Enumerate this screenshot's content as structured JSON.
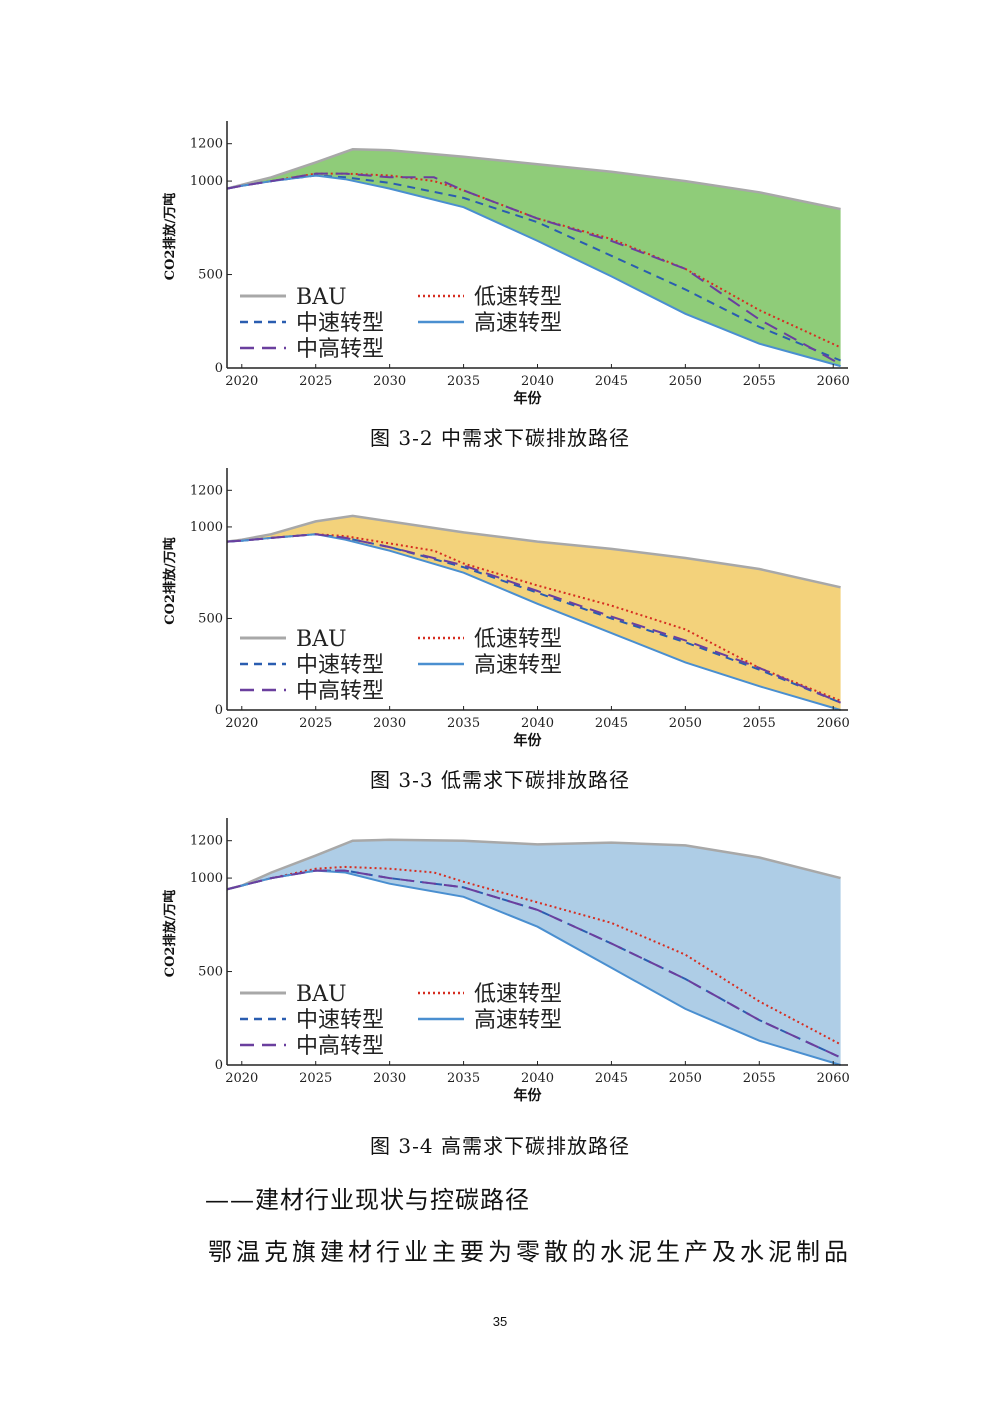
{
  "chart_data": [
    {
      "type": "area",
      "caption": "图 3-2 中需求下碳排放路径",
      "ylabel": "CO2排放/万吨",
      "xlabel": "年份",
      "yticks": [
        "0",
        "500",
        "1000",
        "1200"
      ],
      "xticks": [
        "2020",
        "2025",
        "2030",
        "2035",
        "2040",
        "2045",
        "2050",
        "2055",
        "2060"
      ],
      "xlim": [
        2019,
        2061
      ],
      "ylim": [
        0,
        1300
      ],
      "fill_color": "#8fcc79",
      "legend": [
        "BAU",
        "低速转型",
        "中速转型",
        "高速转型",
        "中高转型"
      ],
      "series": [
        {
          "name": "BAU",
          "x": [
            2019,
            2020,
            2022,
            2025,
            2027.5,
            2030,
            2035,
            2040,
            2045,
            2050,
            2055,
            2060.5
          ],
          "values": [
            960,
            980,
            1020,
            1100,
            1170,
            1165,
            1130,
            1090,
            1050,
            1000,
            940,
            850
          ]
        },
        {
          "name": "低速转型",
          "x": [
            2019,
            2020,
            2022,
            2025,
            2027,
            2030,
            2033,
            2035,
            2040,
            2045,
            2050,
            2055,
            2060.5
          ],
          "values": [
            960,
            975,
            1000,
            1040,
            1040,
            1030,
            1000,
            950,
            800,
            690,
            530,
            310,
            110
          ]
        },
        {
          "name": "中速转型",
          "x": [
            2019,
            2020,
            2022,
            2025,
            2027,
            2030,
            2035,
            2040,
            2045,
            2050,
            2055,
            2060.5
          ],
          "values": [
            960,
            975,
            1000,
            1030,
            1020,
            990,
            910,
            780,
            600,
            420,
            220,
            40
          ]
        },
        {
          "name": "高速转型",
          "x": [
            2019,
            2020,
            2022,
            2025,
            2027,
            2030,
            2035,
            2040,
            2045,
            2050,
            2055,
            2060.5
          ],
          "values": [
            960,
            975,
            1000,
            1030,
            1010,
            960,
            860,
            680,
            490,
            290,
            130,
            10
          ]
        },
        {
          "name": "中高转型",
          "x": [
            2019,
            2020,
            2022,
            2025,
            2027,
            2030,
            2033,
            2035,
            2040,
            2045,
            2050,
            2055,
            2060.5
          ],
          "values": [
            960,
            975,
            1000,
            1040,
            1040,
            1020,
            1020,
            950,
            800,
            680,
            530,
            260,
            20
          ]
        }
      ]
    },
    {
      "type": "area",
      "caption": "图 3-3 低需求下碳排放路径",
      "ylabel": "CO2排放/万吨",
      "xlabel": "年份",
      "yticks": [
        "0",
        "500",
        "1000",
        "1200"
      ],
      "xticks": [
        "2020",
        "2025",
        "2030",
        "2035",
        "2040",
        "2045",
        "2050",
        "2055",
        "2060"
      ],
      "xlim": [
        2019,
        2061
      ],
      "ylim": [
        0,
        1300
      ],
      "fill_color": "#f3d27b",
      "legend": [
        "BAU",
        "低速转型",
        "中速转型",
        "高速转型",
        "中高转型"
      ],
      "series": [
        {
          "name": "BAU",
          "x": [
            2019,
            2020,
            2022,
            2025,
            2027.5,
            2030,
            2035,
            2040,
            2045,
            2050,
            2055,
            2060.5
          ],
          "values": [
            920,
            930,
            960,
            1030,
            1060,
            1030,
            970,
            920,
            880,
            830,
            770,
            670
          ]
        },
        {
          "name": "低速转型",
          "x": [
            2019,
            2020,
            2022,
            2025,
            2027,
            2030,
            2033,
            2035,
            2040,
            2045,
            2050,
            2055,
            2060.5
          ],
          "values": [
            920,
            925,
            940,
            960,
            950,
            910,
            870,
            800,
            680,
            570,
            440,
            230,
            50
          ]
        },
        {
          "name": "中速转型",
          "x": [
            2019,
            2020,
            2022,
            2025,
            2027,
            2030,
            2035,
            2040,
            2045,
            2050,
            2055,
            2060.5
          ],
          "values": [
            920,
            925,
            940,
            960,
            940,
            890,
            780,
            640,
            500,
            370,
            220,
            40
          ]
        },
        {
          "name": "高速转型",
          "x": [
            2019,
            2020,
            2022,
            2025,
            2027,
            2030,
            2035,
            2040,
            2045,
            2050,
            2055,
            2060.5
          ],
          "values": [
            920,
            925,
            940,
            960,
            930,
            870,
            750,
            580,
            420,
            260,
            130,
            0
          ]
        },
        {
          "name": "中高转型",
          "x": [
            2019,
            2020,
            2022,
            2025,
            2027,
            2030,
            2035,
            2040,
            2045,
            2050,
            2055,
            2060.5
          ],
          "values": [
            920,
            925,
            940,
            960,
            940,
            890,
            790,
            650,
            510,
            380,
            230,
            40
          ]
        }
      ]
    },
    {
      "type": "area",
      "caption": "图 3-4 高需求下碳排放路径",
      "ylabel": "CO2排放/万吨",
      "xlabel": "年份",
      "yticks": [
        "0",
        "500",
        "1000",
        "1200"
      ],
      "xticks": [
        "2020",
        "2025",
        "2030",
        "2035",
        "2040",
        "2045",
        "2050",
        "2055",
        "2060"
      ],
      "xlim": [
        2019,
        2061
      ],
      "ylim": [
        0,
        1300
      ],
      "fill_color": "#aecde6",
      "legend": [
        "BAU",
        "低速转型",
        "中速转型",
        "高速转型",
        "中高转型"
      ],
      "series": [
        {
          "name": "BAU",
          "x": [
            2019,
            2020,
            2022,
            2025,
            2027.5,
            2030,
            2035,
            2040,
            2045,
            2050,
            2055,
            2060.5
          ],
          "values": [
            940,
            960,
            1030,
            1120,
            1200,
            1205,
            1200,
            1180,
            1190,
            1175,
            1110,
            1000
          ]
        },
        {
          "name": "低速转型",
          "x": [
            2019,
            2020,
            2022,
            2025,
            2027,
            2030,
            2033,
            2035,
            2040,
            2045,
            2050,
            2055,
            2060.5
          ],
          "values": [
            940,
            960,
            1000,
            1050,
            1060,
            1050,
            1030,
            980,
            870,
            760,
            590,
            340,
            110
          ]
        },
        {
          "name": "中速转型",
          "x": [
            2019,
            2020,
            2022,
            2025,
            2027,
            2030,
            2035,
            2040,
            2045,
            2050,
            2055,
            2060.5
          ],
          "values": [
            940,
            960,
            1000,
            1040,
            1040,
            1000,
            950,
            830,
            650,
            460,
            240,
            40
          ]
        },
        {
          "name": "高速转型",
          "x": [
            2019,
            2020,
            2022,
            2025,
            2027,
            2030,
            2035,
            2040,
            2045,
            2050,
            2055,
            2060.5
          ],
          "values": [
            940,
            960,
            1000,
            1040,
            1030,
            970,
            900,
            740,
            520,
            300,
            130,
            0
          ]
        },
        {
          "name": "中高转型",
          "x": [
            2019,
            2020,
            2022,
            2025,
            2027,
            2030,
            2035,
            2040,
            2045,
            2050,
            2055,
            2060.5
          ],
          "values": [
            940,
            960,
            1000,
            1040,
            1040,
            1000,
            950,
            830,
            650,
            460,
            240,
            40
          ]
        }
      ]
    }
  ],
  "section_heading": "——建材行业现状与控碳路径",
  "body_text": "鄂温克旗建材行业主要为零散的水泥生产及水泥制品",
  "page_number": "35",
  "series_styles": {
    "BAU": {
      "color": "#a8a8a8",
      "dash": "solid"
    },
    "低速转型": {
      "color": "#d62d20",
      "dash": "dotted"
    },
    "中速转型": {
      "color": "#2a5db0",
      "dash": "dashed"
    },
    "高速转型": {
      "color": "#4a8fd0",
      "dash": "solid"
    },
    "中高转型": {
      "color": "#6a3f9e",
      "dash": "long-dashed"
    }
  }
}
